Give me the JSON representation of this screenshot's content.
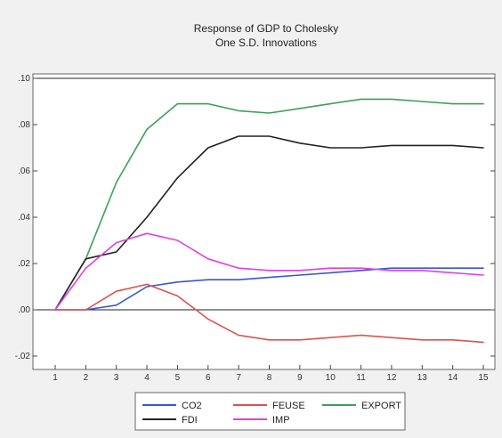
{
  "chart_data": {
    "type": "line",
    "title": "Response of GDP to Cholesky",
    "subtitle": "One S.D. Innovations",
    "xlabel": "",
    "ylabel": "",
    "categories": [
      "1",
      "2",
      "3",
      "4",
      "5",
      "6",
      "7",
      "8",
      "9",
      "10",
      "11",
      "12",
      "13",
      "14",
      "15"
    ],
    "yticks": [
      ".10",
      ".08",
      ".06",
      ".04",
      ".02",
      ".00",
      "-.02"
    ],
    "ylim": [
      -0.02,
      0.1
    ],
    "grid": false,
    "reference_lines": [
      0.0,
      0.1
    ],
    "legend_position": "bottom-center",
    "series": [
      {
        "name": "CO2",
        "color": "#3a55d6",
        "values": [
          0.0,
          0.0,
          0.002,
          0.01,
          0.012,
          0.013,
          0.013,
          0.014,
          0.015,
          0.016,
          0.017,
          0.018,
          0.018,
          0.018,
          0.018
        ]
      },
      {
        "name": "FEUSE",
        "color": "#d9534f",
        "values": [
          0.0,
          0.0,
          0.008,
          0.011,
          0.006,
          -0.004,
          -0.011,
          -0.013,
          -0.013,
          -0.012,
          -0.011,
          -0.012,
          -0.013,
          -0.013,
          -0.014
        ]
      },
      {
        "name": "EXPORT",
        "color": "#3aa05a",
        "values": [
          0.0,
          0.022,
          0.055,
          0.078,
          0.089,
          0.089,
          0.086,
          0.085,
          0.087,
          0.089,
          0.091,
          0.091,
          0.09,
          0.089,
          0.089
        ]
      },
      {
        "name": "FDI",
        "color": "#222222",
        "values": [
          0.0,
          0.022,
          0.025,
          0.04,
          0.057,
          0.07,
          0.075,
          0.075,
          0.072,
          0.07,
          0.07,
          0.071,
          0.071,
          0.071,
          0.07
        ]
      },
      {
        "name": "IMP",
        "color": "#e040e0",
        "values": [
          0.0,
          0.018,
          0.029,
          0.033,
          0.03,
          0.022,
          0.018,
          0.017,
          0.017,
          0.018,
          0.018,
          0.017,
          0.017,
          0.016,
          0.015
        ]
      }
    ]
  }
}
